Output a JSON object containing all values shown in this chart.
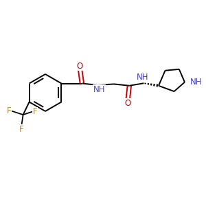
{
  "background_color": "#ffffff",
  "bond_color": "#000000",
  "oxygen_color": "#cc0000",
  "nitrogen_color": "#4444cc",
  "fluorine_color": "#cc8800",
  "figsize": [
    3.0,
    3.0
  ],
  "dpi": 100,
  "xlim": [
    0,
    10
  ],
  "ylim": [
    0,
    10
  ],
  "bond_lw": 1.4,
  "font_size_atom": 8.5
}
